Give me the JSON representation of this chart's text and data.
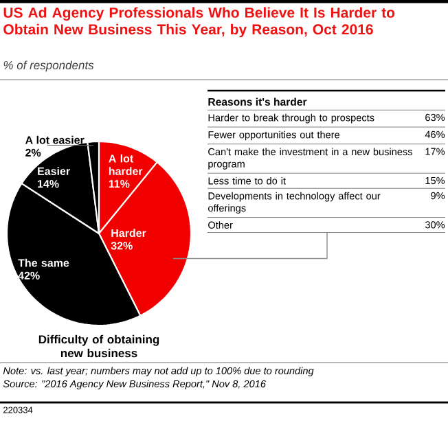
{
  "chart_data": [
    {
      "type": "pie",
      "title": "US Ad Agency Professionals Who Believe It Is Harder to Obtain New Business This Year, by Reason, Oct 2016",
      "subtitle": "% of respondents",
      "xlabel": "Difficulty of obtaining new business",
      "categories": [
        "A lot harder",
        "Harder",
        "The same",
        "Easier",
        "A lot easier"
      ],
      "values": [
        11,
        32,
        42,
        14,
        2
      ],
      "value_labels": [
        "11%",
        "32%",
        "42%",
        "14%",
        "2%"
      ],
      "colors": [
        "#f20000",
        "#f20000",
        "#000000",
        "#000000",
        "#000000"
      ],
      "annotations": [
        "Note: vs. last year; numbers may not add up to 100% due to rounding",
        "Source: \"2016 Agency New Business Report,\" Nov 8, 2016",
        "220334"
      ]
    },
    {
      "type": "other",
      "title": "Reasons it's harder",
      "categories": [
        "Harder to break through to prospects",
        "Fewer opportunities out there",
        "Can't make the investment in a new business program",
        "Less time to do it",
        "Developments in technology affect our offerings",
        "Other"
      ],
      "value_labels": [
        "63%",
        "46%",
        "17%",
        "15%",
        "9%",
        "30%"
      ]
    }
  ]
}
